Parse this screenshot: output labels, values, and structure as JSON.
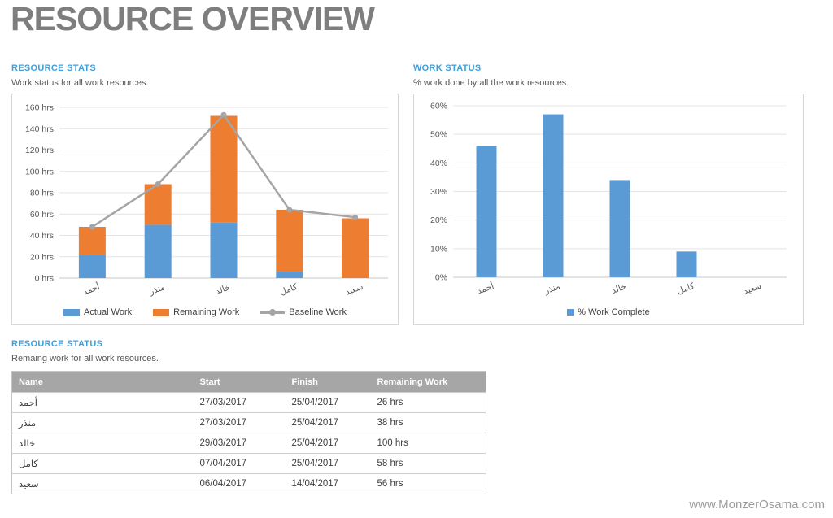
{
  "page": {
    "title": "RESOURCE OVERVIEW",
    "watermark": "www.MonzerOsama.com"
  },
  "colors": {
    "accent_blue": "#5B9BD5",
    "accent_orange": "#ED7D31",
    "baseline_gray": "#A5A5A5",
    "heading_blue": "#3FA0DC",
    "table_header_gray": "#A6A6A6",
    "title_gray": "#7E7E7E"
  },
  "sections": {
    "resource_stats": {
      "heading": "RESOURCE STATS",
      "subtitle": "Work status for all work resources."
    },
    "work_status": {
      "heading": "WORK STATUS",
      "subtitle": "% work done by all the work resources."
    },
    "resource_status": {
      "heading": "RESOURCE STATUS",
      "subtitle": "Remaing work for all work resources."
    }
  },
  "chart_data": [
    {
      "type": "bar",
      "subtype": "stacked-columns-with-line",
      "title": "RESOURCE STATS",
      "categories": [
        "أحمد",
        "منذر",
        "خالد",
        "كامل",
        "سعيد"
      ],
      "series": [
        {
          "name": "Actual Work",
          "type": "bar",
          "color": "#5B9BD5",
          "values": [
            22,
            50,
            52,
            6,
            0
          ]
        },
        {
          "name": "Remaining Work",
          "type": "bar",
          "color": "#ED7D31",
          "values": [
            26,
            38,
            100,
            58,
            56
          ]
        },
        {
          "name": "Baseline Work",
          "type": "line",
          "color": "#A5A5A5",
          "values": [
            48,
            88,
            153,
            64,
            57
          ]
        }
      ],
      "ylabel": "",
      "xlabel": "",
      "ylim": [
        0,
        160
      ],
      "ytick_step": 20,
      "ytick_suffix": " hrs",
      "grid": true,
      "legend_position": "bottom"
    },
    {
      "type": "bar",
      "subtype": "columns",
      "title": "WORK STATUS",
      "categories": [
        "أحمد",
        "منذر",
        "خالد",
        "كامل",
        "سعيد"
      ],
      "series": [
        {
          "name": "% Work Complete",
          "type": "bar",
          "color": "#5B9BD5",
          "values": [
            46,
            57,
            34,
            9,
            0
          ]
        }
      ],
      "ylabel": "",
      "xlabel": "",
      "ylim": [
        0,
        60
      ],
      "ytick_step": 10,
      "ytick_suffix": "%",
      "grid": true,
      "legend_position": "bottom"
    }
  ],
  "table": {
    "headers": [
      "Name",
      "Start",
      "Finish",
      "Remaining Work"
    ],
    "rows": [
      [
        "أحمد",
        "27/03/2017",
        "25/04/2017",
        "26 hrs"
      ],
      [
        "منذر",
        "27/03/2017",
        "25/04/2017",
        "38 hrs"
      ],
      [
        "خالد",
        "29/03/2017",
        "25/04/2017",
        "100 hrs"
      ],
      [
        "كامل",
        "07/04/2017",
        "25/04/2017",
        "58 hrs"
      ],
      [
        "سعيد",
        "06/04/2017",
        "14/04/2017",
        "56 hrs"
      ]
    ]
  }
}
